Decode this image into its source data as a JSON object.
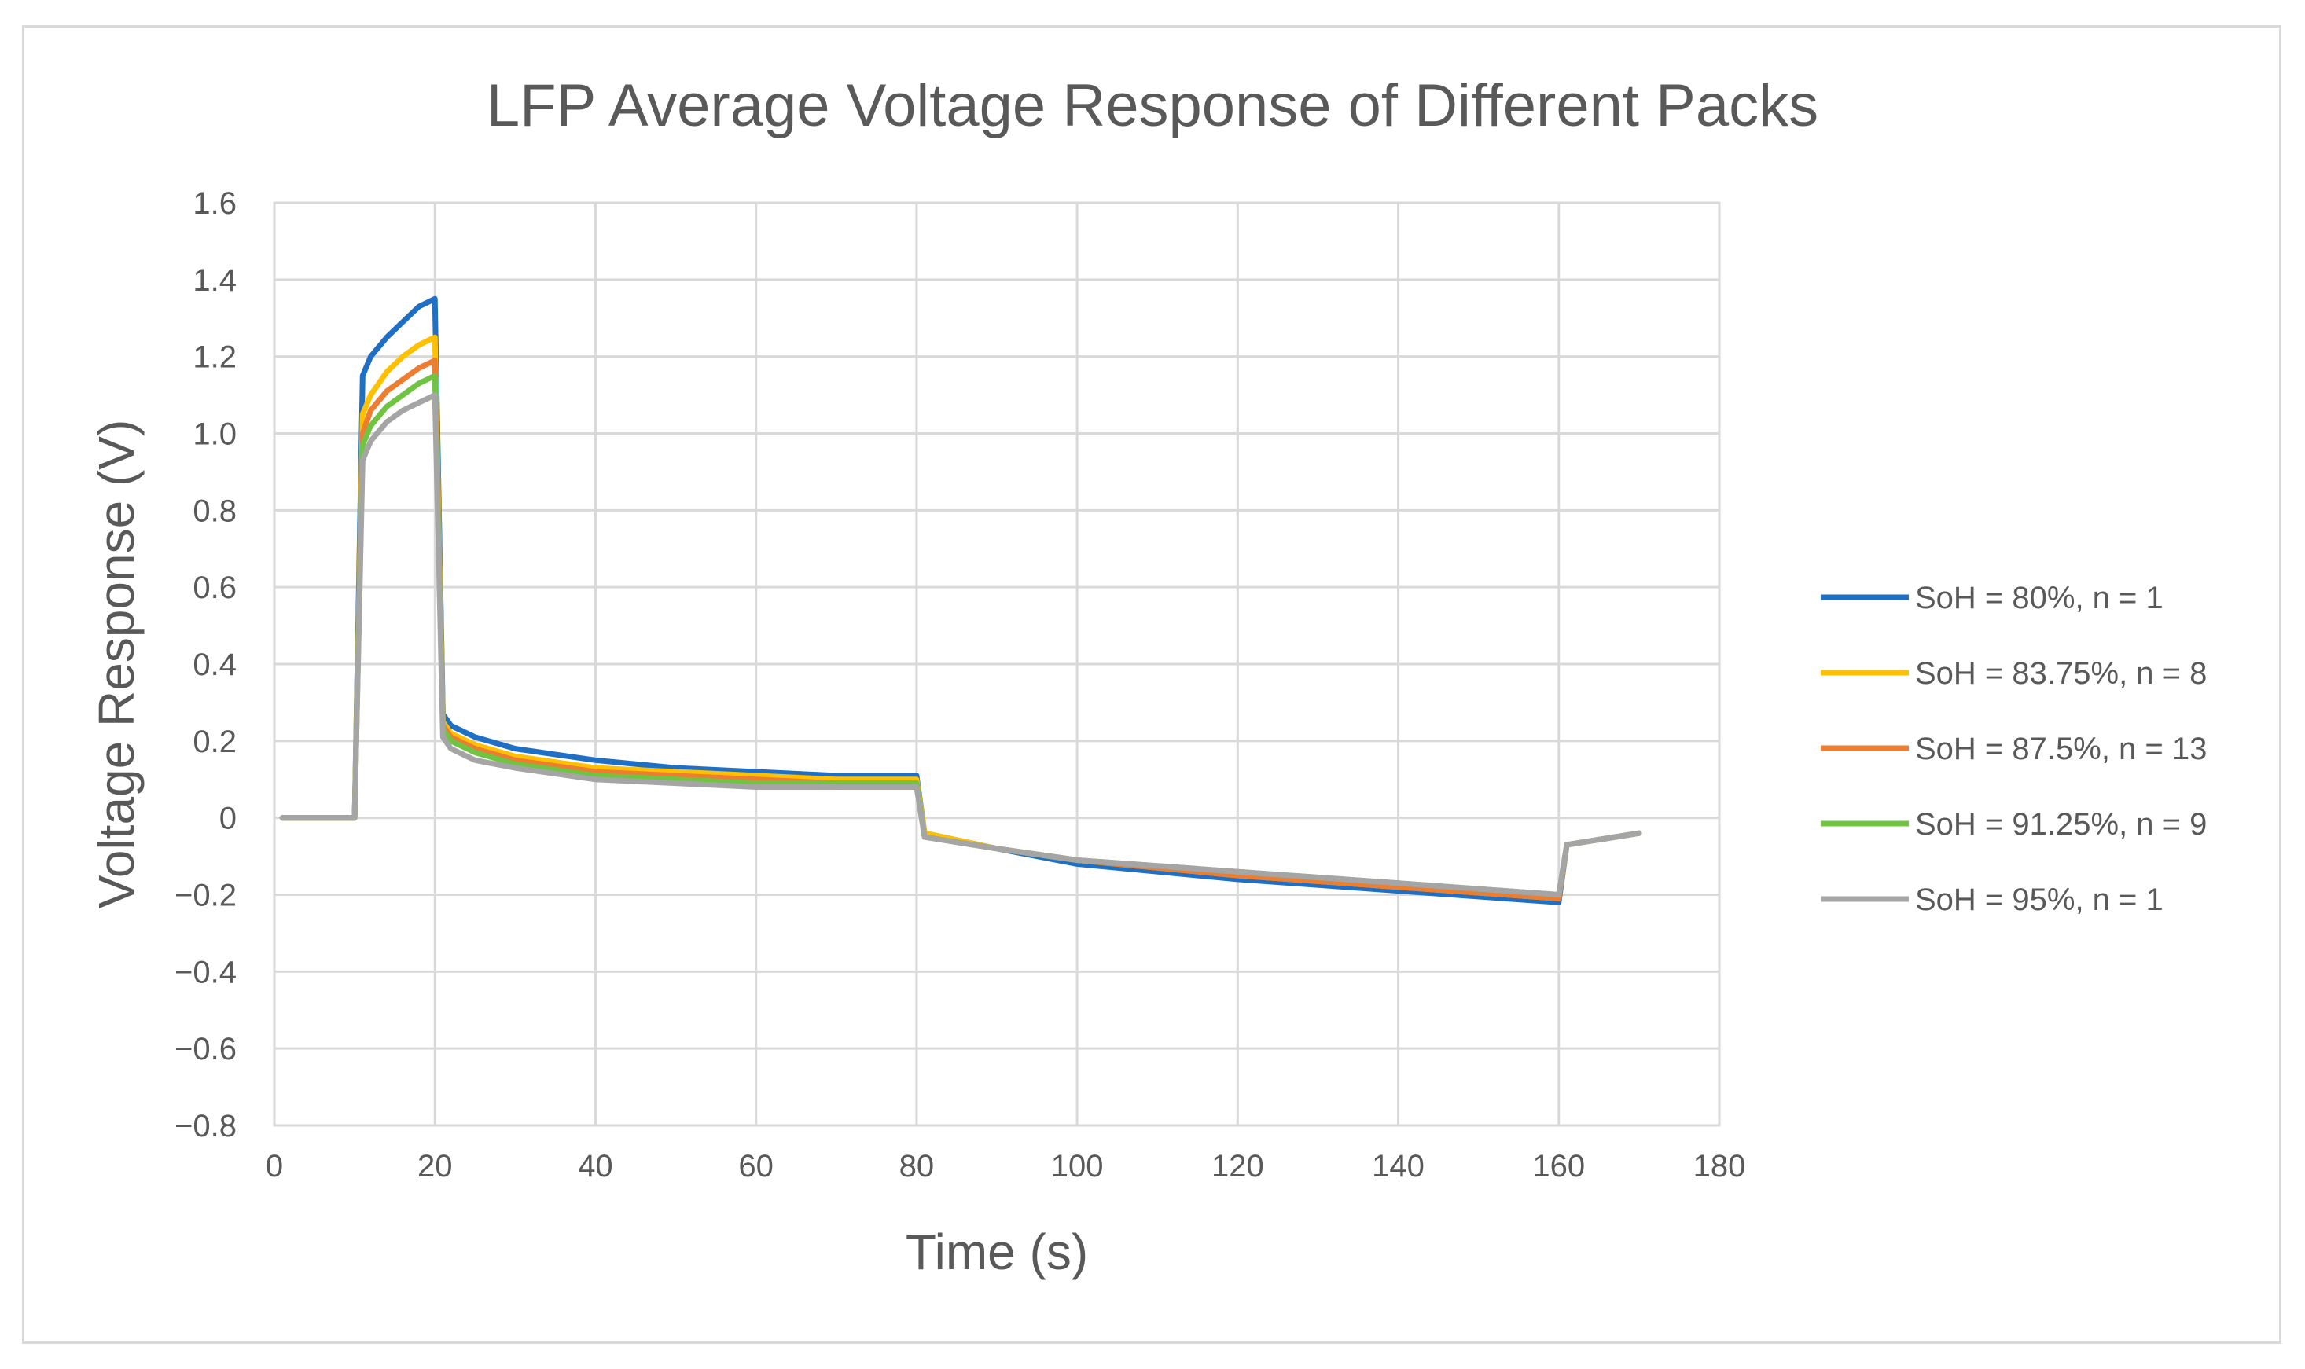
{
  "chart_data": {
    "type": "line",
    "title": "LFP Average Voltage Response of Different Packs",
    "xlabel": "Time (s)",
    "ylabel": "Voltage Response (V)",
    "xlim": [
      0,
      180
    ],
    "ylim": [
      -0.8,
      1.6
    ],
    "x_ticks": [
      0,
      20,
      40,
      60,
      80,
      100,
      120,
      140,
      160,
      180
    ],
    "y_ticks": [
      -0.8,
      -0.6,
      -0.4,
      -0.2,
      0,
      0.2,
      0.4,
      0.6,
      0.8,
      1.0,
      1.2,
      1.4,
      1.6
    ],
    "x_tick_labels": [
      "0",
      "20",
      "40",
      "60",
      "80",
      "100",
      "120",
      "140",
      "160",
      "180"
    ],
    "y_tick_labels": [
      "−0.8",
      "−0.6",
      "−0.4",
      "−0.2",
      "0",
      "0.2",
      "0.4",
      "0.6",
      "0.8",
      "1.0",
      "1.2",
      "1.4",
      "1.6"
    ],
    "grid": true,
    "legend_position": "right",
    "series": [
      {
        "name": "SoH = 80%, n = 1",
        "color": "#1f6fc5",
        "x": [
          1,
          5,
          10,
          11,
          12,
          14,
          16,
          18,
          20,
          21,
          22,
          25,
          30,
          40,
          50,
          60,
          70,
          80,
          81,
          90,
          100,
          120,
          140,
          160,
          161,
          170
        ],
        "y": [
          0,
          0,
          0,
          1.15,
          1.2,
          1.25,
          1.29,
          1.33,
          1.35,
          0.27,
          0.24,
          0.21,
          0.18,
          0.15,
          0.13,
          0.12,
          0.11,
          0.11,
          -0.04,
          -0.08,
          -0.12,
          -0.16,
          -0.19,
          -0.22,
          -0.07,
          -0.04
        ]
      },
      {
        "name": "SoH = 83.75%, n = 8",
        "color": "#ffc000",
        "x": [
          1,
          5,
          10,
          11,
          12,
          14,
          16,
          18,
          20,
          21,
          22,
          25,
          30,
          40,
          50,
          60,
          70,
          80,
          81,
          90,
          100,
          120,
          140,
          160,
          161,
          170
        ],
        "y": [
          0,
          0,
          0,
          1.05,
          1.1,
          1.16,
          1.2,
          1.23,
          1.25,
          0.25,
          0.22,
          0.19,
          0.16,
          0.13,
          0.12,
          0.11,
          0.1,
          0.1,
          -0.04,
          -0.08,
          -0.11,
          -0.15,
          -0.18,
          -0.21,
          -0.07,
          -0.04
        ]
      },
      {
        "name": "SoH = 87.5%, n = 13",
        "color": "#ed7d31",
        "x": [
          1,
          5,
          10,
          11,
          12,
          14,
          16,
          18,
          20,
          21,
          22,
          25,
          30,
          40,
          50,
          60,
          70,
          80,
          81,
          90,
          100,
          120,
          140,
          160,
          161,
          170
        ],
        "y": [
          0,
          0,
          0,
          1.0,
          1.06,
          1.11,
          1.14,
          1.17,
          1.19,
          0.24,
          0.21,
          0.18,
          0.15,
          0.12,
          0.11,
          0.1,
          0.09,
          0.09,
          -0.05,
          -0.08,
          -0.11,
          -0.15,
          -0.18,
          -0.21,
          -0.07,
          -0.04
        ]
      },
      {
        "name": "SoH = 91.25%, n = 9",
        "color": "#70c442",
        "x": [
          1,
          5,
          10,
          11,
          12,
          14,
          16,
          18,
          20,
          21,
          22,
          25,
          30,
          40,
          50,
          60,
          70,
          80,
          81,
          90,
          100,
          120,
          140,
          160,
          161,
          170
        ],
        "y": [
          0,
          0,
          0,
          0.97,
          1.02,
          1.07,
          1.1,
          1.13,
          1.15,
          0.23,
          0.2,
          0.17,
          0.14,
          0.11,
          0.1,
          0.09,
          0.09,
          0.09,
          -0.05,
          -0.08,
          -0.11,
          -0.14,
          -0.17,
          -0.2,
          -0.07,
          -0.04
        ]
      },
      {
        "name": "SoH = 95%, n = 1",
        "color": "#a5a5a5",
        "x": [
          1,
          5,
          10,
          11,
          12,
          14,
          16,
          18,
          20,
          21,
          22,
          25,
          30,
          40,
          50,
          60,
          70,
          80,
          81,
          90,
          100,
          120,
          140,
          160,
          161,
          170
        ],
        "y": [
          0,
          0,
          0,
          0.93,
          0.98,
          1.03,
          1.06,
          1.08,
          1.1,
          0.21,
          0.18,
          0.15,
          0.13,
          0.1,
          0.09,
          0.08,
          0.08,
          0.08,
          -0.05,
          -0.08,
          -0.11,
          -0.14,
          -0.17,
          -0.2,
          -0.07,
          -0.04
        ]
      }
    ]
  }
}
